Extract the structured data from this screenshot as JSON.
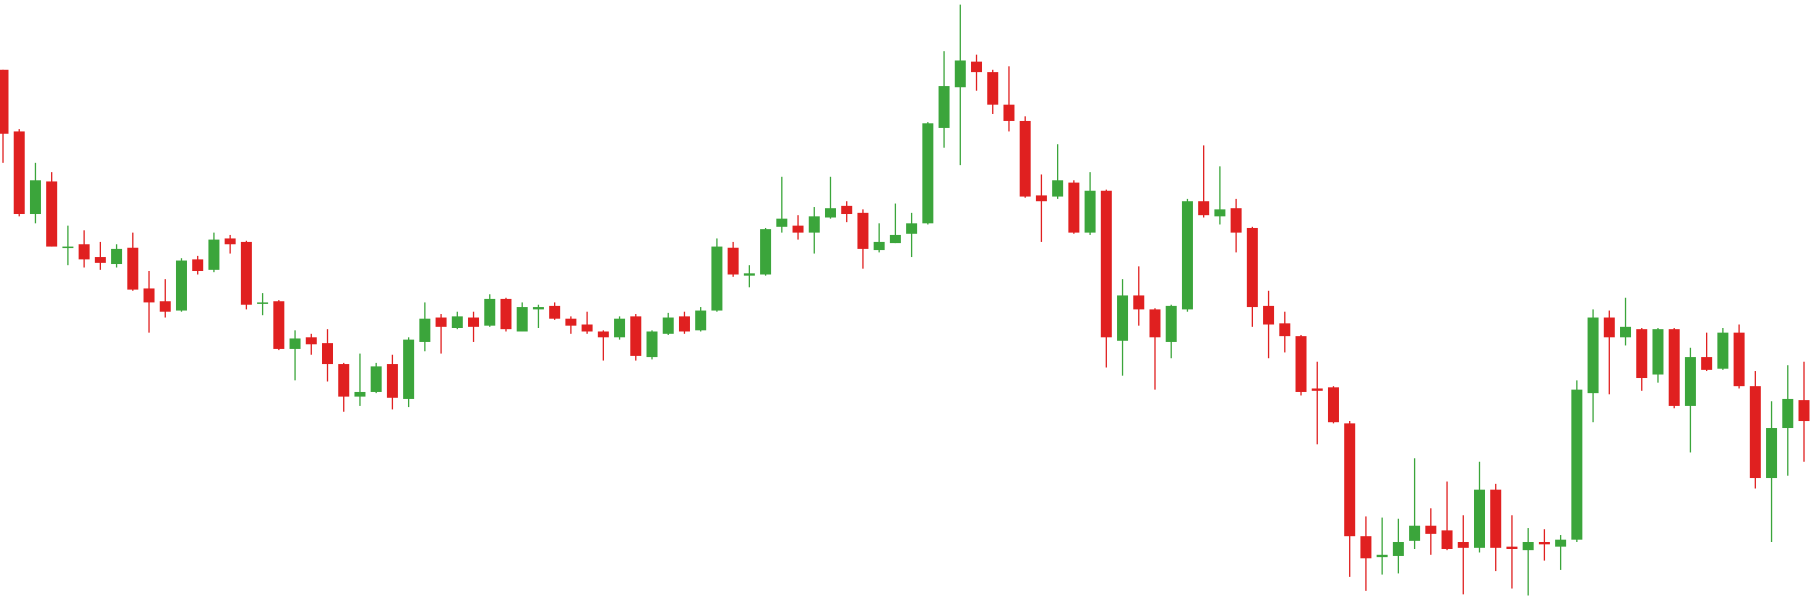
{
  "chart_data": {
    "type": "candlestick",
    "open": [
      455,
      402,
      331,
      359,
      302,
      305,
      294,
      288,
      302,
      267,
      256,
      248,
      292,
      283,
      310,
      307,
      254,
      256,
      215,
      225,
      220,
      202,
      174,
      178,
      202,
      172,
      221,
      242,
      233,
      242,
      235,
      258,
      230,
      249,
      252,
      241,
      236,
      230,
      225,
      243,
      208,
      228,
      243,
      231,
      248,
      302,
      278,
      279,
      320,
      321,
      315,
      328,
      338,
      332,
      300,
      306,
      314,
      323,
      405,
      440,
      462,
      453,
      425,
      411,
      347,
      346,
      358,
      315,
      351,
      222,
      261,
      249,
      221,
      249,
      342,
      329,
      336,
      319,
      252,
      237,
      226,
      181,
      182,
      151,
      54,
      36,
      37,
      50,
      63,
      59,
      49,
      44,
      94,
      45,
      42,
      49,
      45,
      51,
      177,
      242,
      225,
      232,
      193,
      232,
      166,
      208,
      198,
      229,
      183,
      104,
      147,
      171
    ],
    "high": [
      455,
      404,
      375,
      367,
      321,
      317,
      307,
      305,
      315,
      282,
      275,
      293,
      295,
      315,
      313,
      308,
      263,
      257,
      231,
      228,
      232,
      203,
      211,
      203,
      210,
      225,
      255,
      245,
      247,
      247,
      262,
      259,
      255,
      253,
      255,
      243,
      247,
      231,
      243,
      245,
      231,
      246,
      247,
      251,
      310,
      307,
      287,
      319,
      363,
      330,
      337,
      363,
      342,
      335,
      323,
      340,
      332,
      410,
      471,
      511,
      468,
      455,
      458,
      415,
      365,
      391,
      360,
      367,
      352,
      275,
      286,
      250,
      253,
      344,
      390,
      372,
      344,
      320,
      265,
      247,
      227,
      204,
      183,
      153,
      71,
      70,
      69,
      121,
      78,
      101,
      72,
      118,
      99,
      72,
      61,
      60,
      55,
      188,
      249,
      248,
      259,
      233,
      233,
      233,
      216,
      229,
      233,
      236,
      196,
      170,
      201,
      204
    ],
    "low": [
      375,
      329,
      323,
      303,
      287,
      285,
      283,
      285,
      265,
      229,
      242,
      247,
      279,
      281,
      297,
      249,
      244,
      214,
      188,
      210,
      187,
      161,
      166,
      177,
      163,
      165,
      213,
      211,
      232,
      221,
      234,
      230,
      230,
      233,
      240,
      228,
      228,
      205,
      223,
      205,
      206,
      227,
      228,
      230,
      247,
      277,
      268,
      278,
      315,
      309,
      297,
      327,
      324,
      284,
      298,
      306,
      294,
      322,
      388,
      373,
      437,
      417,
      402,
      345,
      307,
      344,
      314,
      313,
      199,
      192,
      235,
      180,
      207,
      247,
      328,
      322,
      298,
      234,
      207,
      212,
      175,
      133,
      151,
      19,
      7,
      21,
      22,
      43,
      38,
      42,
      4,
      40,
      24,
      9,
      3,
      33,
      25,
      49,
      152,
      176,
      218,
      179,
      186,
      164,
      126,
      196,
      197,
      181,
      95,
      49,
      106,
      118
    ],
    "close": [
      400,
      331,
      360,
      303,
      303,
      292,
      289,
      301,
      266,
      255,
      247,
      291,
      282,
      309,
      305,
      253,
      255,
      215,
      224,
      219,
      202,
      174,
      178,
      200,
      173,
      223,
      241,
      234,
      243,
      234,
      258,
      232,
      251,
      251,
      241,
      235,
      230,
      225,
      241,
      209,
      230,
      242,
      230,
      248,
      303,
      279,
      280,
      318,
      327,
      315,
      329,
      336,
      331,
      301,
      307,
      313,
      323,
      409,
      441,
      463,
      453,
      425,
      411,
      346,
      342,
      360,
      315,
      351,
      225,
      261,
      249,
      225,
      252,
      342,
      330,
      335,
      315,
      251,
      236,
      226,
      178,
      179,
      152,
      54,
      35,
      38,
      49,
      63,
      56,
      43,
      44,
      94,
      44,
      43,
      49,
      47,
      51,
      180,
      242,
      225,
      234,
      190,
      232,
      166,
      208,
      197,
      229,
      183,
      104,
      147,
      172,
      153
    ],
    "ylim": [
      0,
      515
    ],
    "up_color": "#3ba53b",
    "down_color": "#e02020"
  }
}
